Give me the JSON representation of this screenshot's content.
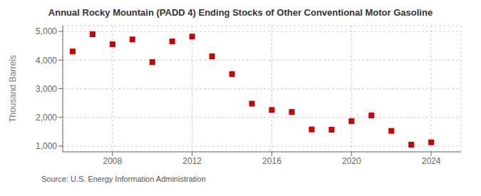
{
  "chart_data": {
    "type": "scatter",
    "title": "Annual Rocky Mountain (PADD 4) Ending Stocks of Other Conventional Motor Gasoline",
    "ylabel": "Thousand Barrels",
    "annotations": [
      "Source: U.S. Energy Information Administration"
    ],
    "x": [
      2006,
      2007,
      2008,
      2009,
      2010,
      2011,
      2012,
      2013,
      2014,
      2015,
      2016,
      2017,
      2018,
      2019,
      2020,
      2021,
      2022,
      2023,
      2024
    ],
    "values": [
      4300,
      4900,
      4550,
      4720,
      3930,
      4650,
      4820,
      4130,
      3510,
      2480,
      2260,
      2190,
      1580,
      1570,
      1870,
      2070,
      1530,
      1050,
      1130
    ],
    "color": "#cc0000",
    "marker": "square",
    "grid": true,
    "xlim": [
      2005.5,
      2025.5
    ],
    "xticks": [
      2008,
      2012,
      2016,
      2020,
      2024
    ],
    "ylim": [
      800,
      5200
    ],
    "yticks": [
      {
        "value": 1000,
        "label": "1,000"
      },
      {
        "value": 2000,
        "label": "2,000"
      },
      {
        "value": 3000,
        "label": "3,000"
      },
      {
        "value": 4000,
        "label": "4,000"
      },
      {
        "value": 5000,
        "label": "5,000"
      }
    ]
  }
}
